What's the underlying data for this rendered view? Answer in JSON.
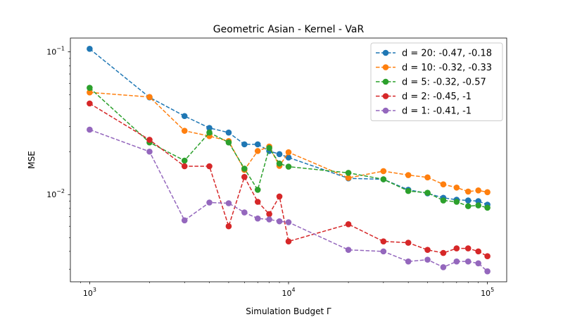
{
  "chart_data": {
    "type": "line",
    "title": "Geometric Asian - Kernel - VaR",
    "xlabel": "Simulation Budget Γ",
    "ylabel": "MSE",
    "xscale": "log",
    "yscale": "log",
    "xlim": [
      800,
      125000
    ],
    "ylim": [
      0.00245,
      0.125
    ],
    "grid": false,
    "legend_position": "top-right",
    "x_major_ticks": [
      {
        "value": 1000,
        "base": "10",
        "exp": "3"
      },
      {
        "value": 10000,
        "base": "10",
        "exp": "4"
      },
      {
        "value": 100000,
        "base": "10",
        "exp": "5"
      }
    ],
    "y_major_ticks": [
      {
        "value": 0.01,
        "base": "10",
        "exp": "−2"
      },
      {
        "value": 0.1,
        "base": "10",
        "exp": "−1"
      }
    ],
    "x": [
      1000,
      2000,
      3000,
      4000,
      5000,
      6000,
      7000,
      8000,
      9000,
      10000,
      20000,
      30000,
      40000,
      50000,
      60000,
      70000,
      80000,
      90000,
      100000
    ],
    "series": [
      {
        "name": "d = 20: -0.47, -0.18",
        "color": "#1f77b4",
        "values": [
          0.105,
          0.048,
          0.0355,
          0.0293,
          0.0272,
          0.0225,
          0.0225,
          0.0202,
          0.0192,
          0.0182,
          0.013,
          0.0128,
          0.0108,
          0.0102,
          0.0095,
          0.0092,
          0.0091,
          0.009,
          0.0085
        ]
      },
      {
        "name": "d = 10: -0.32, -0.33",
        "color": "#ff7f0e",
        "values": [
          0.052,
          0.0483,
          0.028,
          0.0257,
          0.0237,
          0.0149,
          0.0202,
          0.0217,
          0.0159,
          0.0198,
          0.0131,
          0.0146,
          0.0137,
          0.0132,
          0.0118,
          0.0112,
          0.0105,
          0.0107,
          0.0104
        ]
      },
      {
        "name": "d = 5: -0.32, -0.57",
        "color": "#2ca02c",
        "values": [
          0.056,
          0.0232,
          0.0173,
          0.0272,
          0.0232,
          0.0152,
          0.0108,
          0.0212,
          0.0165,
          0.0157,
          0.0142,
          0.0128,
          0.0106,
          0.0103,
          0.0091,
          0.0089,
          0.0083,
          0.0084,
          0.0081
        ]
      },
      {
        "name": "d = 2: -0.45, -1",
        "color": "#d62728",
        "values": [
          0.0435,
          0.0242,
          0.0158,
          0.0158,
          0.006,
          0.0133,
          0.0089,
          0.0073,
          0.0097,
          0.0047,
          0.0062,
          0.0047,
          0.0046,
          0.0041,
          0.0039,
          0.0042,
          0.0042,
          0.004,
          0.0037
        ]
      },
      {
        "name": "d = 1: -0.41, -1",
        "color": "#9467bd",
        "values": [
          0.0285,
          0.02,
          0.0066,
          0.0088,
          0.0087,
          0.0075,
          0.0068,
          0.0067,
          0.0065,
          0.0064,
          0.0041,
          0.004,
          0.0034,
          0.0035,
          0.0031,
          0.0034,
          0.0034,
          0.0033,
          0.0029
        ]
      }
    ]
  }
}
